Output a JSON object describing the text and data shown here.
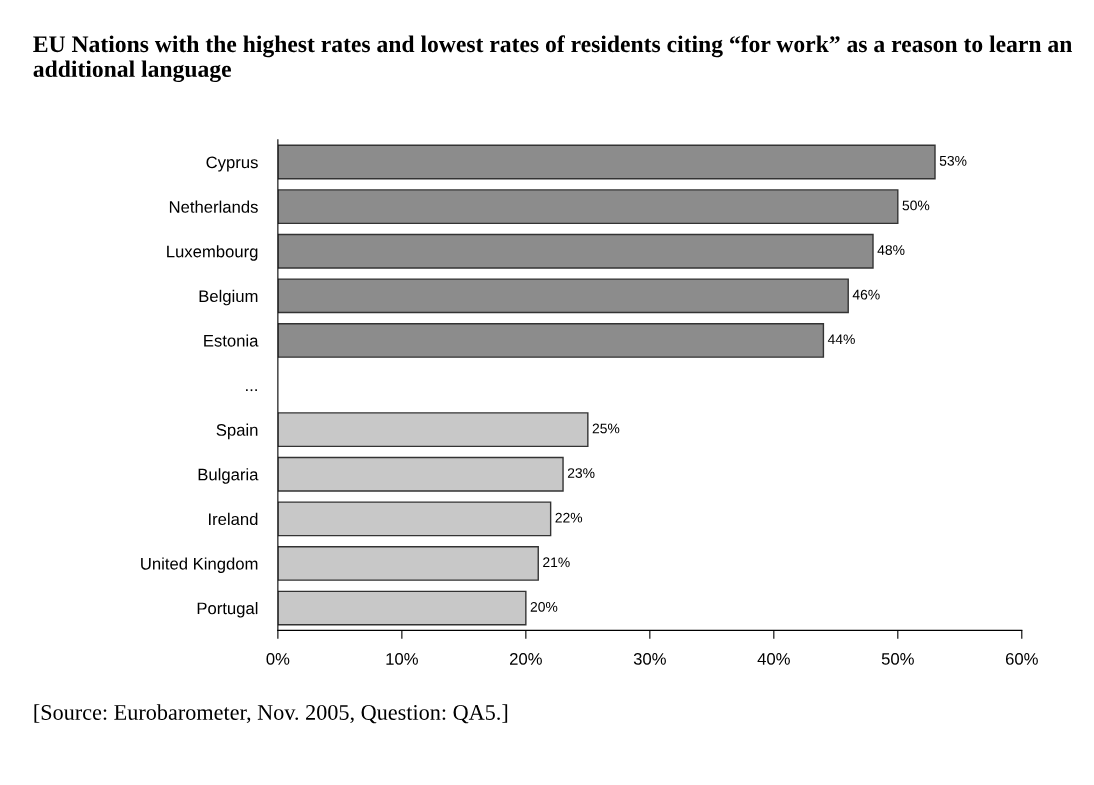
{
  "chart_data": {
    "type": "bar",
    "orientation": "horizontal",
    "title": "EU Nations with the highest rates and lowest rates of residents citing “for work” as a reason to learn an additional language",
    "categories": [
      "Cyprus",
      "Netherlands",
      "Luxembourg",
      "Belgium",
      "Estonia",
      "...",
      "Spain",
      "Bulgaria",
      "Ireland",
      "United Kingdom",
      "Portugal"
    ],
    "values": [
      53,
      50,
      48,
      46,
      44,
      null,
      25,
      23,
      22,
      21,
      20
    ],
    "colors": [
      "#8c8c8c",
      "#8c8c8c",
      "#8c8c8c",
      "#8c8c8c",
      "#8c8c8c",
      null,
      "#c8c8c8",
      "#c8c8c8",
      "#c8c8c8",
      "#c8c8c8",
      "#c8c8c8"
    ],
    "value_labels": [
      "53%",
      "50%",
      "48%",
      "46%",
      "44%",
      null,
      "25%",
      "23%",
      "22%",
      "21%",
      "20%"
    ],
    "xlim": [
      0,
      60
    ],
    "xticks": [
      {
        "value": 0,
        "label": "0%"
      },
      {
        "value": 10,
        "label": "10%"
      },
      {
        "value": 20,
        "label": "20%"
      },
      {
        "value": 30,
        "label": "30%"
      },
      {
        "value": 40,
        "label": "40%"
      },
      {
        "value": 50,
        "label": "50%"
      },
      {
        "value": 60,
        "label": "60%"
      }
    ],
    "grid": false,
    "legend": false,
    "annotations": [
      "[Source: Eurobarometer, Nov. 2005, Question: QA5.]"
    ]
  }
}
